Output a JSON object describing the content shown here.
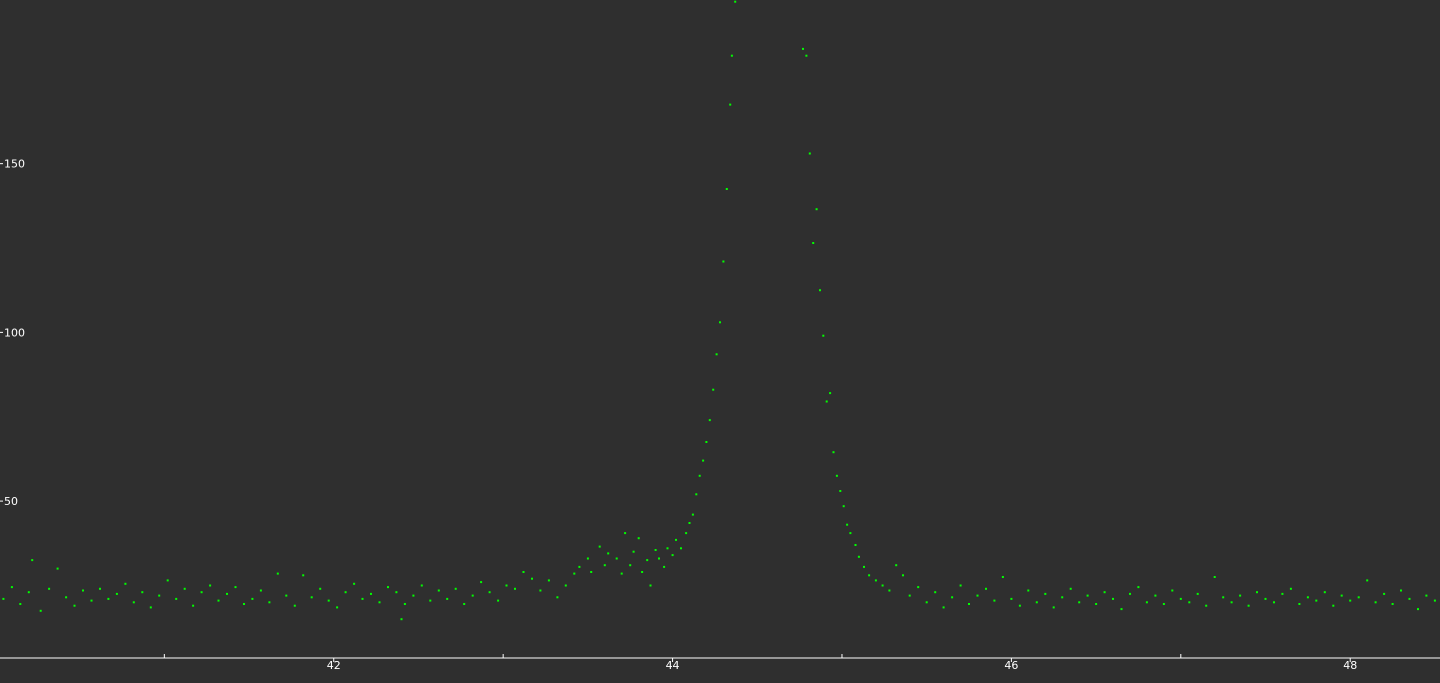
{
  "chart_data": {
    "type": "scatter",
    "title": "",
    "xlabel": "",
    "ylabel": "",
    "xlim": [
      40.03,
      48.53
    ],
    "ylim": [
      3.5,
      198.5
    ],
    "grid": false,
    "legend": "none",
    "x_major_ticks": [
      42,
      44,
      46,
      48
    ],
    "x_minor_ticks": [
      41,
      43,
      45,
      47
    ],
    "y_ticks": [
      50,
      100,
      150
    ],
    "x_tick_labels": [
      "42",
      "44",
      "46",
      "48"
    ],
    "y_tick_labels": [
      "50",
      "100",
      "150"
    ],
    "series": [
      {
        "marker": "dot",
        "color": "#00ff00",
        "points": [
          [
            40.05,
            21.0
          ],
          [
            40.1,
            24.5
          ],
          [
            40.15,
            19.5
          ],
          [
            40.2,
            23.0
          ],
          [
            40.22,
            32.5
          ],
          [
            40.27,
            17.5
          ],
          [
            40.32,
            24.0
          ],
          [
            40.37,
            30.0
          ],
          [
            40.42,
            21.5
          ],
          [
            40.47,
            19.0
          ],
          [
            40.52,
            23.5
          ],
          [
            40.57,
            20.5
          ],
          [
            40.62,
            24.0
          ],
          [
            40.67,
            21.0
          ],
          [
            40.72,
            22.5
          ],
          [
            40.77,
            25.5
          ],
          [
            40.82,
            20.0
          ],
          [
            40.87,
            23.0
          ],
          [
            40.92,
            18.5
          ],
          [
            40.97,
            22.0
          ],
          [
            41.02,
            26.5
          ],
          [
            41.07,
            21.0
          ],
          [
            41.12,
            24.0
          ],
          [
            41.17,
            19.0
          ],
          [
            41.22,
            23.0
          ],
          [
            41.27,
            25.0
          ],
          [
            41.32,
            20.5
          ],
          [
            41.37,
            22.5
          ],
          [
            41.42,
            24.5
          ],
          [
            41.47,
            19.5
          ],
          [
            41.52,
            21.0
          ],
          [
            41.57,
            23.5
          ],
          [
            41.62,
            20.0
          ],
          [
            41.67,
            28.5
          ],
          [
            41.72,
            22.0
          ],
          [
            41.77,
            19.0
          ],
          [
            41.82,
            28.0
          ],
          [
            41.87,
            21.5
          ],
          [
            41.92,
            24.0
          ],
          [
            41.97,
            20.5
          ],
          [
            42.02,
            18.5
          ],
          [
            42.07,
            23.0
          ],
          [
            42.12,
            25.5
          ],
          [
            42.17,
            21.0
          ],
          [
            42.22,
            22.5
          ],
          [
            42.27,
            20.0
          ],
          [
            42.32,
            24.5
          ],
          [
            42.37,
            23.0
          ],
          [
            42.4,
            15.0
          ],
          [
            42.42,
            19.5
          ],
          [
            42.47,
            22.0
          ],
          [
            42.52,
            25.0
          ],
          [
            42.57,
            20.5
          ],
          [
            42.62,
            23.5
          ],
          [
            42.67,
            21.0
          ],
          [
            42.72,
            24.0
          ],
          [
            42.77,
            19.5
          ],
          [
            42.82,
            22.0
          ],
          [
            42.87,
            26.0
          ],
          [
            42.92,
            23.0
          ],
          [
            42.97,
            20.5
          ],
          [
            43.02,
            25.0
          ],
          [
            43.07,
            24.0
          ],
          [
            43.12,
            29.0
          ],
          [
            43.17,
            27.0
          ],
          [
            43.22,
            23.5
          ],
          [
            43.27,
            26.5
          ],
          [
            43.32,
            21.5
          ],
          [
            43.37,
            25.0
          ],
          [
            43.42,
            28.5
          ],
          [
            43.45,
            30.5
          ],
          [
            43.5,
            33.0
          ],
          [
            43.52,
            29.0
          ],
          [
            43.57,
            36.5
          ],
          [
            43.6,
            31.0
          ],
          [
            43.62,
            34.5
          ],
          [
            43.67,
            33.0
          ],
          [
            43.7,
            28.5
          ],
          [
            43.72,
            40.5
          ],
          [
            43.75,
            31.0
          ],
          [
            43.77,
            35.0
          ],
          [
            43.8,
            39.0
          ],
          [
            43.82,
            29.0
          ],
          [
            43.85,
            32.5
          ],
          [
            43.87,
            25.0
          ],
          [
            43.9,
            35.5
          ],
          [
            43.92,
            33.0
          ],
          [
            43.95,
            30.5
          ],
          [
            43.97,
            36.0
          ],
          [
            44.0,
            34.0
          ],
          [
            44.02,
            38.5
          ],
          [
            44.05,
            36.0
          ],
          [
            44.08,
            40.5
          ],
          [
            44.1,
            43.5
          ],
          [
            44.12,
            46.0
          ],
          [
            44.14,
            52.0
          ],
          [
            44.16,
            57.5
          ],
          [
            44.18,
            62.0
          ],
          [
            44.2,
            67.5
          ],
          [
            44.22,
            74.0
          ],
          [
            44.24,
            83.0
          ],
          [
            44.26,
            93.5
          ],
          [
            44.28,
            103.0
          ],
          [
            44.3,
            121.0
          ],
          [
            44.32,
            142.5
          ],
          [
            44.34,
            167.5
          ],
          [
            44.35,
            182.0
          ],
          [
            44.37,
            198.0
          ],
          [
            44.77,
            184.0
          ],
          [
            44.79,
            182.0
          ],
          [
            44.81,
            153.0
          ],
          [
            44.83,
            126.5
          ],
          [
            44.85,
            136.5
          ],
          [
            44.87,
            112.5
          ],
          [
            44.89,
            99.0
          ],
          [
            44.91,
            79.5
          ],
          [
            44.93,
            82.0
          ],
          [
            44.95,
            64.5
          ],
          [
            44.97,
            57.5
          ],
          [
            44.99,
            53.0
          ],
          [
            45.01,
            48.5
          ],
          [
            45.03,
            43.0
          ],
          [
            45.05,
            40.5
          ],
          [
            45.08,
            37.0
          ],
          [
            45.1,
            33.5
          ],
          [
            45.13,
            30.5
          ],
          [
            45.16,
            28.0
          ],
          [
            45.2,
            26.5
          ],
          [
            45.24,
            25.0
          ],
          [
            45.28,
            23.5
          ],
          [
            45.32,
            31.0
          ],
          [
            45.36,
            28.0
          ],
          [
            45.4,
            22.0
          ],
          [
            45.45,
            24.5
          ],
          [
            45.5,
            20.0
          ],
          [
            45.55,
            23.0
          ],
          [
            45.6,
            18.5
          ],
          [
            45.65,
            21.5
          ],
          [
            45.7,
            25.0
          ],
          [
            45.75,
            19.5
          ],
          [
            45.8,
            22.0
          ],
          [
            45.85,
            24.0
          ],
          [
            45.9,
            20.5
          ],
          [
            45.95,
            27.5
          ],
          [
            46.0,
            21.0
          ],
          [
            46.05,
            19.0
          ],
          [
            46.1,
            23.5
          ],
          [
            46.15,
            20.0
          ],
          [
            46.2,
            22.5
          ],
          [
            46.25,
            18.5
          ],
          [
            46.3,
            21.5
          ],
          [
            46.35,
            24.0
          ],
          [
            46.4,
            20.0
          ],
          [
            46.45,
            22.0
          ],
          [
            46.5,
            19.5
          ],
          [
            46.55,
            23.0
          ],
          [
            46.6,
            21.0
          ],
          [
            46.65,
            18.0
          ],
          [
            46.7,
            22.5
          ],
          [
            46.75,
            24.5
          ],
          [
            46.8,
            20.0
          ],
          [
            46.85,
            22.0
          ],
          [
            46.9,
            19.5
          ],
          [
            46.95,
            23.5
          ],
          [
            47.0,
            21.0
          ],
          [
            47.05,
            20.0
          ],
          [
            47.1,
            22.5
          ],
          [
            47.15,
            19.0
          ],
          [
            47.2,
            27.5
          ],
          [
            47.25,
            21.5
          ],
          [
            47.3,
            20.0
          ],
          [
            47.35,
            22.0
          ],
          [
            47.4,
            19.0
          ],
          [
            47.45,
            23.0
          ],
          [
            47.5,
            21.0
          ],
          [
            47.55,
            20.0
          ],
          [
            47.6,
            22.5
          ],
          [
            47.65,
            24.0
          ],
          [
            47.7,
            19.5
          ],
          [
            47.75,
            21.5
          ],
          [
            47.8,
            20.5
          ],
          [
            47.85,
            23.0
          ],
          [
            47.9,
            19.0
          ],
          [
            47.95,
            22.0
          ],
          [
            48.0,
            20.5
          ],
          [
            48.05,
            21.5
          ],
          [
            48.1,
            26.5
          ],
          [
            48.15,
            20.0
          ],
          [
            48.2,
            22.5
          ],
          [
            48.25,
            19.5
          ],
          [
            48.3,
            23.5
          ],
          [
            48.35,
            21.0
          ],
          [
            48.4,
            18.0
          ],
          [
            48.45,
            22.0
          ],
          [
            48.5,
            20.5
          ]
        ]
      }
    ]
  }
}
